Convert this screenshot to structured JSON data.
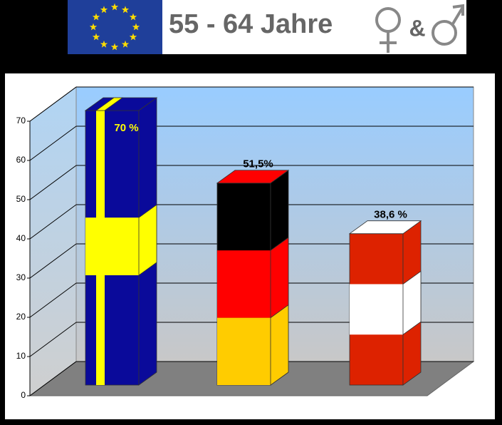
{
  "chart_data": {
    "type": "bar",
    "title": "55 - 64 Jahre",
    "title_joiner": "&",
    "categories": [
      null,
      null,
      null
    ],
    "values": [
      70,
      51.5,
      38.6
    ],
    "value_labels": [
      "70 %",
      "51,5%",
      "38,6 %"
    ],
    "ylim": [
      0,
      70
    ],
    "yticks": [
      0,
      10,
      20,
      30,
      40,
      50,
      60,
      70
    ],
    "grid": true
  }
}
